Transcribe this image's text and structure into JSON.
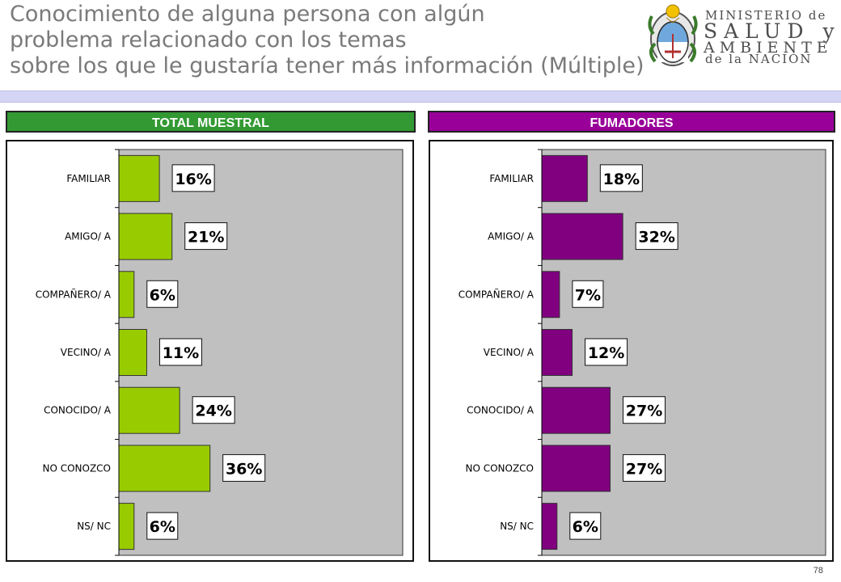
{
  "title": {
    "line1": "Conocimiento de alguna persona con algún",
    "line2": "problema relacionado con los temas",
    "line3": "sobre los que le gustaría tener más información (Múltiple)"
  },
  "logo": {
    "line1": "MINISTERIO de",
    "line2": "SALUD y",
    "line3": "AMBIENTE",
    "line4": "de la NACIÓN"
  },
  "colors": {
    "panel1_header": "#339933",
    "panel2_header": "#990099",
    "series1_bar": "#99cc00",
    "series2_bar": "#800080",
    "plot_bg": "#c0c0c0"
  },
  "panels": [
    {
      "header": "TOTAL MUESTRAL"
    },
    {
      "header": "FUMADORES"
    }
  ],
  "chart_data": [
    {
      "type": "bar",
      "orientation": "horizontal",
      "title": "TOTAL MUESTRAL",
      "categories": [
        "FAMILIAR",
        "AMIGO/ A",
        "COMPAÑERO/ A",
        "VECINO/ A",
        "CONOCIDO/ A",
        "NO CONOZCO",
        "NS/ NC"
      ],
      "values": [
        16,
        21,
        6,
        11,
        24,
        36,
        6
      ],
      "labels": [
        "16%",
        "21%",
        "6%",
        "11%",
        "24%",
        "36%",
        "6%"
      ],
      "xlim": [
        0,
        100
      ],
      "grid": false,
      "legend": "none"
    },
    {
      "type": "bar",
      "orientation": "horizontal",
      "title": "FUMADORES",
      "categories": [
        "FAMILIAR",
        "AMIGO/ A",
        "COMPAÑERO/ A",
        "VECINO/ A",
        "CONOCIDO/ A",
        "NO CONOZCO",
        "NS/ NC"
      ],
      "values": [
        18,
        32,
        7,
        12,
        27,
        27,
        6
      ],
      "labels": [
        "18%",
        "32%",
        "7%",
        "12%",
        "27%",
        "27%",
        "6%"
      ],
      "xlim": [
        0,
        100
      ],
      "grid": false,
      "legend": "none"
    }
  ],
  "page_number": "78"
}
